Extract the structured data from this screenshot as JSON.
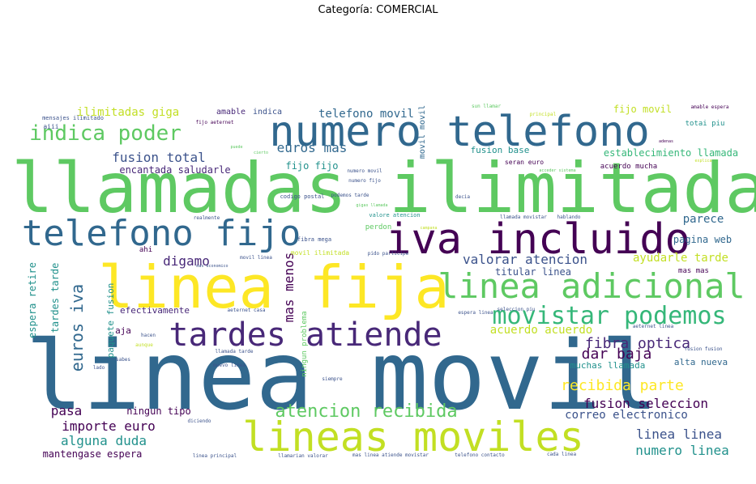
{
  "title": "Categoría: COMERCIAL",
  "chart_data": {
    "type": "wordcloud",
    "title": "Categoría: COMERCIAL",
    "palette": [
      "#440154",
      "#3b528b",
      "#21918c",
      "#5ec962",
      "#c2df23",
      "#fde725"
    ],
    "words": [
      {
        "text": "linea movil",
        "weight": 100,
        "color": "#31688e"
      },
      {
        "text": "llamadas ilimitada",
        "weight": 88,
        "color": "#5ec962"
      },
      {
        "text": "linea fija",
        "weight": 74,
        "color": "#fde725"
      },
      {
        "text": "numero telefono",
        "weight": 58,
        "color": "#31688e"
      },
      {
        "text": "iva incluido",
        "weight": 56,
        "color": "#440154"
      },
      {
        "text": "lineas moviles",
        "weight": 52,
        "color": "#c2df23"
      },
      {
        "text": "telefono fijo",
        "weight": 44,
        "color": "#31688e"
      },
      {
        "text": "tardes atiende",
        "weight": 44,
        "color": "#482878"
      },
      {
        "text": "linea adicional",
        "weight": 42,
        "color": "#5ec962"
      },
      {
        "text": "movistar podemos",
        "weight": 30,
        "color": "#35b779"
      },
      {
        "text": "indica poder",
        "weight": 26,
        "color": "#5ec962"
      },
      {
        "text": "atencion recibida",
        "weight": 22,
        "color": "#5ec962"
      },
      {
        "text": "euros iva",
        "weight": 20,
        "color": "#31688e"
      },
      {
        "text": "fibra optica",
        "weight": 18,
        "color": "#482878"
      },
      {
        "text": "recibida parte",
        "weight": 18,
        "color": "#fde725"
      },
      {
        "text": "dar baja",
        "weight": 18,
        "color": "#440154"
      },
      {
        "text": "fusion seleccion",
        "weight": 16,
        "color": "#440154"
      },
      {
        "text": "importe euro",
        "weight": 16,
        "color": "#440154"
      },
      {
        "text": "valorar atencion",
        "weight": 16,
        "color": "#3b528b"
      },
      {
        "text": "fusion total",
        "weight": 16,
        "color": "#3b528b"
      },
      {
        "text": "euros mas",
        "weight": 16,
        "color": "#31688e"
      },
      {
        "text": "digamo",
        "weight": 16,
        "color": "#482878"
      },
      {
        "text": "alguna duda",
        "weight": 16,
        "color": "#21918c"
      },
      {
        "text": "numero linea",
        "weight": 16,
        "color": "#21918c"
      },
      {
        "text": "linea linea",
        "weight": 16,
        "color": "#3b528b"
      },
      {
        "text": "pasa",
        "weight": 16,
        "color": "#440154"
      },
      {
        "text": "mas menos",
        "weight": 16,
        "color": "#440154"
      },
      {
        "text": "ilimitadas giga",
        "weight": 14,
        "color": "#c2df23"
      },
      {
        "text": "telefono movil",
        "weight": 14,
        "color": "#31688e"
      },
      {
        "text": "ayudarle tarde",
        "weight": 14,
        "color": "#c2df23"
      },
      {
        "text": "parece",
        "weight": 14,
        "color": "#31688e"
      },
      {
        "text": "correo electronico",
        "weight": 14,
        "color": "#3b528b"
      },
      {
        "text": "acuerdo acuerdo",
        "weight": 14,
        "color": "#c2df23"
      },
      {
        "text": "fijo movil",
        "weight": 12,
        "color": "#c2df23"
      },
      {
        "text": "encantada saludarle",
        "weight": 12,
        "color": "#482878"
      },
      {
        "text": "fijo fijo",
        "weight": 12,
        "color": "#21918c"
      },
      {
        "text": "tardes tarde",
        "weight": 12,
        "color": "#21918c"
      },
      {
        "text": "espera retire",
        "weight": 12,
        "color": "#21918c"
      },
      {
        "text": "titular linea",
        "weight": 12,
        "color": "#3b528b"
      },
      {
        "text": "pagina web",
        "weight": 12,
        "color": "#31688e"
      },
      {
        "text": "establecimiento llamada",
        "weight": 12,
        "color": "#35b779"
      },
      {
        "text": "fusion base",
        "weight": 11,
        "color": "#21918c"
      },
      {
        "text": "ningun tipo",
        "weight": 12,
        "color": "#440154"
      },
      {
        "text": "mantengase espera",
        "weight": 12,
        "color": "#440154"
      },
      {
        "text": "muchas llamada",
        "weight": 11,
        "color": "#21918c"
      },
      {
        "text": "alta nueva",
        "weight": 11,
        "color": "#31688e"
      },
      {
        "text": "efectivamente",
        "weight": 11,
        "color": "#482878"
      },
      {
        "text": "paquete fusion",
        "weight": 11,
        "color": "#21918c"
      },
      {
        "text": "movil movil",
        "weight": 10,
        "color": "#31688e"
      },
      {
        "text": "aja",
        "weight": 11,
        "color": "#440154"
      },
      {
        "text": "amable",
        "weight": 10,
        "color": "#482878"
      },
      {
        "text": "indica",
        "weight": 10,
        "color": "#3b528b"
      },
      {
        "text": "mas mas",
        "weight": 9,
        "color": "#440154"
      },
      {
        "text": "totai piu",
        "weight": 9,
        "color": "#21918c"
      },
      {
        "text": "acuerdo mucha",
        "weight": 9,
        "color": "#440154"
      },
      {
        "text": "perdon",
        "weight": 9,
        "color": "#5ec962"
      },
      {
        "text": "ahi",
        "weight": 9,
        "color": "#440154"
      },
      {
        "text": "ningun problema",
        "weight": 9,
        "color": "#5ec962"
      },
      {
        "text": "movil ilimitada",
        "weight": 8,
        "color": "#c2df23"
      },
      {
        "text": "seran euro",
        "weight": 8,
        "color": "#440154"
      },
      {
        "text": "aiii",
        "weight": 8,
        "color": "#3b528b"
      },
      {
        "text": "codigo postal",
        "weight": 7,
        "color": "#3b528b"
      },
      {
        "text": "fibra mega",
        "weight": 7,
        "color": "#3b528b"
      },
      {
        "text": "valore atencion",
        "weight": 7,
        "color": "#21918c"
      },
      {
        "text": "mensajes ilimitado",
        "weight": 7,
        "color": "#3b528b"
      },
      {
        "text": "fijo aeternet",
        "weight": 6,
        "color": "#440154"
      },
      {
        "text": "principal",
        "weight": 6,
        "color": "#c2df23"
      },
      {
        "text": "amable espera",
        "weight": 6,
        "color": "#440154"
      },
      {
        "text": "sun llamar",
        "weight": 6,
        "color": "#5ec962"
      },
      {
        "text": "numero movil",
        "weight": 6,
        "color": "#3b528b"
      },
      {
        "text": "numero fijo",
        "weight": 6,
        "color": "#3b528b"
      },
      {
        "text": "decia",
        "weight": 6,
        "color": "#3b528b"
      },
      {
        "text": "podemos tarde",
        "weight": 6,
        "color": "#3b528b"
      },
      {
        "text": "llamada movistar",
        "weight": 6,
        "color": "#3b528b"
      },
      {
        "text": "hablando",
        "weight": 6,
        "color": "#3b528b"
      },
      {
        "text": "realmente",
        "weight": 6,
        "color": "#3b528b"
      },
      {
        "text": "espera linea",
        "weight": 6,
        "color": "#3b528b"
      },
      {
        "text": "seleccion piu",
        "weight": 6,
        "color": "#3b528b"
      },
      {
        "text": "mas economico",
        "weight": 5,
        "color": "#3b528b"
      },
      {
        "text": "movil linea",
        "weight": 6,
        "color": "#3b528b"
      },
      {
        "text": "pido participe",
        "weight": 6,
        "color": "#3b528b"
      },
      {
        "text": "aeternet casa",
        "weight": 6,
        "color": "#3b528b"
      },
      {
        "text": "llamada tarde",
        "weight": 6,
        "color": "#3b528b"
      },
      {
        "text": "hacen",
        "weight": 6,
        "color": "#3b528b"
      },
      {
        "text": "aunque",
        "weight": 6,
        "color": "#c2df23"
      },
      {
        "text": "sabes",
        "weight": 6,
        "color": "#3b528b"
      },
      {
        "text": "lado",
        "weight": 6,
        "color": "#3b528b"
      },
      {
        "text": "siempre",
        "weight": 6,
        "color": "#3b528b"
      },
      {
        "text": "diciendo",
        "weight": 6,
        "color": "#3b528b"
      },
      {
        "text": "linea principal",
        "weight": 6,
        "color": "#3b528b"
      },
      {
        "text": "llamarian valorar",
        "weight": 6,
        "color": "#3b528b"
      },
      {
        "text": "mas linea atiende movistar",
        "weight": 6,
        "color": "#3b528b"
      },
      {
        "text": "telefono contacto",
        "weight": 6,
        "color": "#3b528b"
      },
      {
        "text": "cada linea",
        "weight": 6,
        "color": "#3b528b"
      },
      {
        "text": "aeternet linea",
        "weight": 6,
        "color": "#3b528b"
      },
      {
        "text": "fusion fusion",
        "weight": 6,
        "color": "#3b528b"
      },
      {
        "text": "muevo linea",
        "weight": 6,
        "color": "#3b528b"
      },
      {
        "text": "adenas",
        "weight": 5,
        "color": "#440154"
      },
      {
        "text": "explica",
        "weight": 5,
        "color": "#c2df23"
      },
      {
        "text": "acceder sistema",
        "weight": 5,
        "color": "#5ec962"
      },
      {
        "text": "puede",
        "weight": 5,
        "color": "#5ec962"
      },
      {
        "text": "cierto",
        "weight": 5,
        "color": "#5ec962"
      },
      {
        "text": "gigas llamada",
        "weight": 5,
        "color": "#5ec962"
      },
      {
        "text": "campana",
        "weight": 5,
        "color": "#c2df23"
      }
    ]
  }
}
